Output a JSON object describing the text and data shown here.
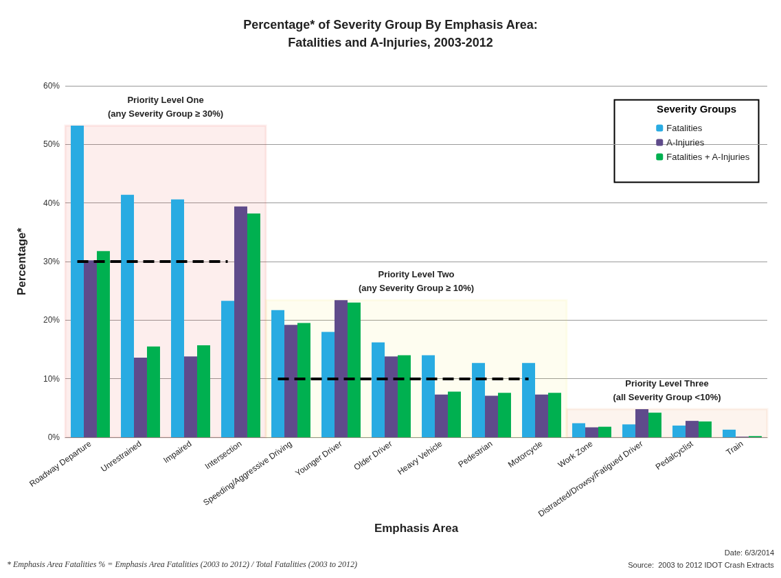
{
  "chart_data": {
    "type": "bar",
    "title": "Percentage* of Severity Group By Emphasis Area:\nFatalities and A-Injuries, 2003-2012",
    "xlabel": "Emphasis Area",
    "ylabel": "Percentage*",
    "legend_title": "Severity Groups",
    "categories": [
      "Roadway Departure",
      "Unrestrained",
      "Impaired",
      "Intersection",
      "Speeding/Aggressive Driving",
      "Younger Driver",
      "Older Driver",
      "Heavy Vehicle",
      "Pedestrian",
      "Motorcycle",
      "Work Zone",
      "Distracted/Drowsy/Fatigued Driver",
      "Pedalcyclist",
      "Train"
    ],
    "series": [
      {
        "name": "Fatalities",
        "color": "#29abe2",
        "values": [
          53.2,
          41.4,
          40.6,
          23.3,
          21.7,
          18.0,
          16.2,
          14.0,
          12.7,
          12.7,
          2.4,
          2.2,
          2.0,
          1.3
        ]
      },
      {
        "name": "A-Injuries",
        "color": "#5f4b8b",
        "values": [
          30.2,
          13.6,
          13.8,
          39.4,
          19.2,
          23.4,
          13.8,
          7.3,
          7.1,
          7.3,
          1.7,
          4.8,
          2.8,
          0.1
        ]
      },
      {
        "name": "Fatalities + A-Injuries",
        "color": "#00b050",
        "values": [
          31.8,
          15.5,
          15.7,
          38.2,
          19.5,
          23.0,
          14.0,
          7.8,
          7.6,
          7.6,
          1.8,
          4.2,
          2.7,
          0.2
        ]
      }
    ],
    "ylim": [
      0,
      60
    ],
    "yticks": [
      {
        "value": 0,
        "label": "0%"
      },
      {
        "value": 10,
        "label": "10%"
      },
      {
        "value": 20,
        "label": "20%"
      },
      {
        "value": 30,
        "label": "30%"
      },
      {
        "value": 40,
        "label": "40%"
      },
      {
        "value": 50,
        "label": "50%"
      },
      {
        "value": 60,
        "label": "60%"
      }
    ],
    "grid": "y",
    "legend": "top right",
    "bands": [
      {
        "axis": "x",
        "from": "Roadway Departure",
        "to": "Intersection",
        "label": "Priority Level One\n(any Severity Group ≥ 30%)",
        "color": "#e0201e"
      },
      {
        "axis": "x",
        "from": "Speeding/Aggressive Driving",
        "to": "Motorcycle",
        "label": "Priority Level Two\n(any Severity Group ≥ 10%)",
        "color": "#f2ea3a"
      },
      {
        "axis": "x",
        "from": "Work Zone",
        "to": "Train",
        "label": "Priority Level Three\n(all Severity Group <10%)",
        "color": "#e07020"
      }
    ],
    "ref_lines": [
      {
        "axis": "y",
        "value": 30,
        "color": "#000000",
        "line_style": "dashed"
      },
      {
        "axis": "y",
        "value": 10,
        "color": "#000000",
        "line_style": "dashed"
      }
    ],
    "annotations": [
      "* Emphasis Area Fatalities % = Emphasis Area Fatalities (2003 to 2012) / Total Fatalities (2003 to 2012)",
      "Date: 6/3/2014",
      "Source:  2003 to 2012 IDOT Crash Extracts"
    ]
  }
}
